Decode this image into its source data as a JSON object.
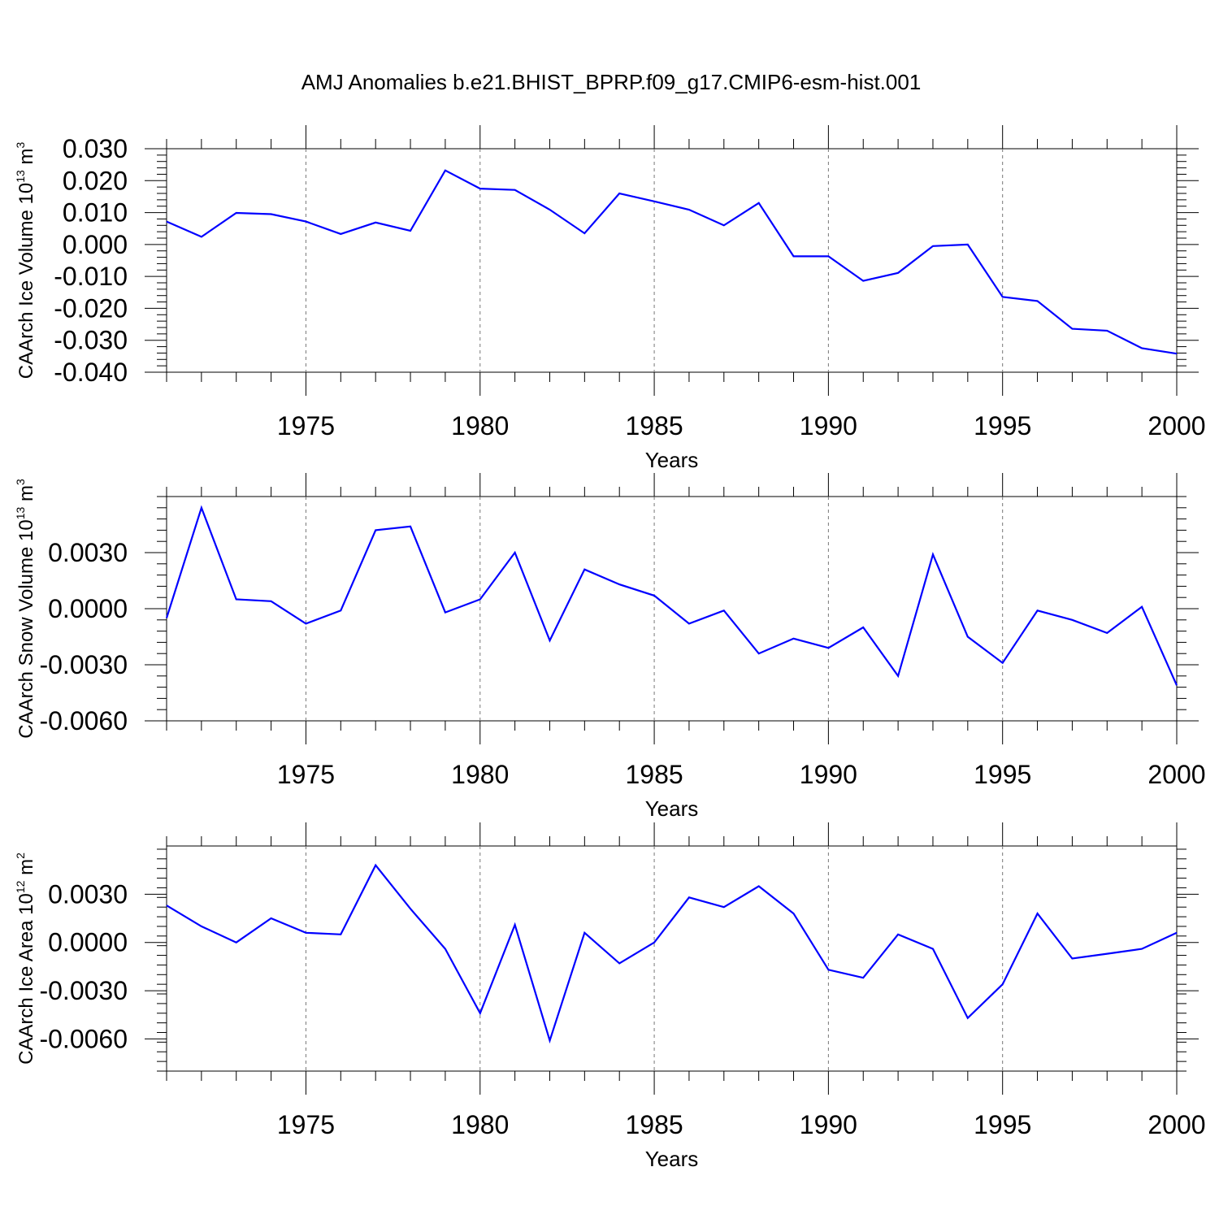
{
  "title": "AMJ Anomalies b.e21.BHIST_BPRP.f09_g17.CMIP6-esm-hist.001",
  "line_color": "#0000ff",
  "chart_data": [
    {
      "type": "line",
      "ylabel": "CAArch Ice Volume 10",
      "ylabel_exp": "13",
      "ylabel_unit": " m",
      "ylabel_unit_exp": "3",
      "xlabel": "Years",
      "xlim": [
        1971,
        2000
      ],
      "ylim": [
        -0.04,
        0.03
      ],
      "x_ticks": [
        1975,
        1980,
        1985,
        1990,
        1995,
        2000
      ],
      "y_ticks": [
        0.03,
        0.02,
        0.01,
        0.0,
        -0.01,
        -0.02,
        -0.03,
        -0.04
      ],
      "y_tick_labels": [
        "0.030",
        "0.020",
        "0.010",
        "0.000",
        "-0.010",
        "-0.020",
        "-0.030",
        "-0.040"
      ],
      "grid": "vertical-dashed",
      "x": [
        1971,
        1972,
        1973,
        1974,
        1975,
        1976,
        1977,
        1978,
        1979,
        1980,
        1981,
        1982,
        1983,
        1984,
        1985,
        1986,
        1987,
        1988,
        1989,
        1990,
        1991,
        1992,
        1993,
        1994,
        1995,
        1996,
        1997,
        1998,
        1999,
        2000
      ],
      "values": [
        0.0072,
        0.0024,
        0.0099,
        0.0095,
        0.0072,
        0.0033,
        0.0069,
        0.0043,
        0.0232,
        0.0175,
        0.0171,
        0.0109,
        0.0035,
        0.016,
        0.0135,
        0.0109,
        0.006,
        0.013,
        -0.0037,
        -0.0037,
        -0.0114,
        -0.0089,
        -0.0005,
        0.0,
        -0.0164,
        -0.0177,
        -0.0264,
        -0.027,
        -0.0325,
        -0.0342
      ]
    },
    {
      "type": "line",
      "ylabel": "CAArch Snow Volume 10",
      "ylabel_exp": "13",
      "ylabel_unit": " m",
      "ylabel_unit_exp": "3",
      "xlabel": "Years",
      "xlim": [
        1971,
        2000
      ],
      "ylim": [
        -0.006,
        0.006
      ],
      "x_ticks": [
        1975,
        1980,
        1985,
        1990,
        1995,
        2000
      ],
      "y_ticks": [
        0.003,
        0.0,
        -0.003,
        -0.006
      ],
      "y_tick_labels": [
        "0.0030",
        "0.0000",
        "-0.0030",
        "-0.0060"
      ],
      "grid": "vertical-dashed",
      "x": [
        1971,
        1972,
        1973,
        1974,
        1975,
        1976,
        1977,
        1978,
        1979,
        1980,
        1981,
        1982,
        1983,
        1984,
        1985,
        1986,
        1987,
        1988,
        1989,
        1990,
        1991,
        1992,
        1993,
        1994,
        1995,
        1996,
        1997,
        1998,
        1999,
        2000
      ],
      "values": [
        -0.0005,
        0.0054,
        0.0005,
        0.0004,
        -0.0008,
        -0.0001,
        0.0042,
        0.0044,
        -0.0002,
        0.0005,
        0.003,
        -0.0017,
        0.0021,
        0.0013,
        0.0007,
        -0.0008,
        -0.0001,
        -0.0024,
        -0.0016,
        -0.0021,
        -0.001,
        -0.0036,
        0.0029,
        -0.0015,
        -0.0029,
        -0.0001,
        -0.0006,
        -0.0013,
        0.0001,
        -0.0041
      ]
    },
    {
      "type": "line",
      "ylabel": "CAArch Ice Area 10",
      "ylabel_exp": "12",
      "ylabel_unit": " m",
      "ylabel_unit_exp": "2",
      "xlabel": "Years",
      "xlim": [
        1971,
        2000
      ],
      "ylim": [
        -0.008,
        0.006
      ],
      "x_ticks": [
        1975,
        1980,
        1985,
        1990,
        1995,
        2000
      ],
      "y_ticks": [
        0.003,
        0.0,
        -0.003,
        -0.006
      ],
      "y_tick_labels": [
        "0.0030",
        "0.0000",
        "-0.0030",
        "-0.0060"
      ],
      "grid": "vertical-dashed",
      "x": [
        1971,
        1972,
        1973,
        1974,
        1975,
        1976,
        1977,
        1978,
        1979,
        1980,
        1981,
        1982,
        1983,
        1984,
        1985,
        1986,
        1987,
        1988,
        1989,
        1990,
        1991,
        1992,
        1993,
        1994,
        1995,
        1996,
        1997,
        1998,
        1999,
        2000
      ],
      "values": [
        0.0023,
        0.001,
        0.0,
        0.0015,
        0.0006,
        0.0005,
        0.0048,
        0.0021,
        -0.0004,
        -0.0044,
        0.0011,
        -0.0061,
        0.0006,
        -0.0013,
        0.0,
        0.0028,
        0.0022,
        0.0035,
        0.0018,
        -0.0017,
        -0.0022,
        0.0005,
        -0.0004,
        -0.0047,
        -0.0026,
        0.0018,
        -0.001,
        -0.0007,
        -0.0004,
        0.0006
      ]
    }
  ]
}
